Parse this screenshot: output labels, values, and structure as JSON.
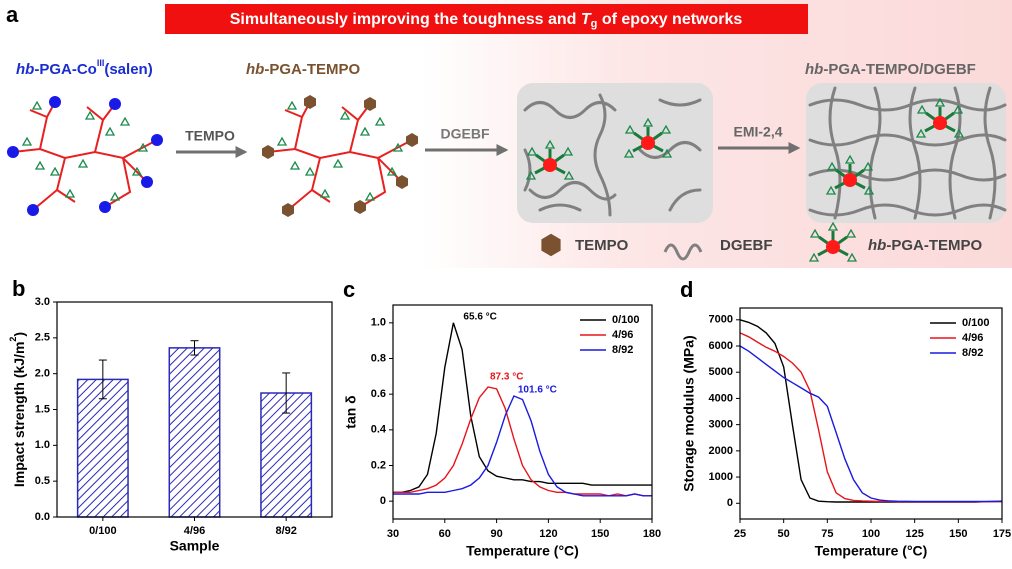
{
  "panel_a": {
    "letter": "a",
    "banner": [
      "Simultaneously improving the toughness and ",
      "T",
      "g",
      " of epoxy networks"
    ],
    "structure_1": [
      "hb",
      "-PGA-Co",
      "III",
      "(salen)"
    ],
    "structure_2": [
      "hb",
      "-PGA-TEMPO"
    ],
    "structure_3": [
      "hb",
      "-PGA-TEMPO/DGEBF"
    ],
    "arrow_1": "TEMPO",
    "arrow_2": "DGEBF",
    "arrow_3": "EMI-2,4",
    "legend": {
      "tempo": "TEMPO",
      "dgebf": "DGEBF",
      "hb_pga_tempo": [
        "hb",
        "-PGA-TEMPO"
      ]
    }
  },
  "chart_data": [
    {
      "type": "bar",
      "panel_label": "b",
      "categories": [
        "0/100",
        "4/96",
        "8/92"
      ],
      "values": [
        1.92,
        2.36,
        1.73
      ],
      "errors": [
        0.27,
        0.1,
        0.28
      ],
      "color": "#2a2ab8",
      "hatch": true,
      "xlabel": "Sample",
      "ylabel": [
        "Impact strength (kJ/m",
        "2",
        ")"
      ],
      "ylim": [
        0,
        3.0
      ],
      "yticks": [
        {
          "value": 0,
          "label": "0.0"
        },
        0.5,
        {
          "value": 1,
          "label": "1.0"
        },
        1.5,
        {
          "value": 2,
          "label": "2.0"
        },
        2.5,
        {
          "value": 3,
          "label": "3.0"
        }
      ]
    },
    {
      "type": "line",
      "panel_label": "c",
      "x": [
        30,
        35,
        40,
        45,
        50,
        55,
        60,
        65,
        70,
        75,
        80,
        85,
        90,
        95,
        100,
        105,
        110,
        115,
        120,
        125,
        130,
        135,
        140,
        145,
        150,
        155,
        160,
        165,
        170,
        175,
        180
      ],
      "series": [
        {
          "name": "0/100",
          "color": "#000000",
          "values": [
            0.05,
            0.05,
            0.06,
            0.08,
            0.15,
            0.38,
            0.75,
            1.0,
            0.85,
            0.48,
            0.25,
            0.17,
            0.14,
            0.13,
            0.12,
            0.12,
            0.11,
            0.11,
            0.1,
            0.1,
            0.1,
            0.1,
            0.1,
            0.09,
            0.09,
            0.09,
            0.09,
            0.09,
            0.09,
            0.09,
            0.09
          ]
        },
        {
          "name": "4/96",
          "color": "#e8141b",
          "values": [
            0.05,
            0.05,
            0.05,
            0.06,
            0.07,
            0.09,
            0.13,
            0.2,
            0.32,
            0.46,
            0.58,
            0.64,
            0.63,
            0.52,
            0.35,
            0.2,
            0.12,
            0.08,
            0.06,
            0.05,
            0.05,
            0.04,
            0.04,
            0.04,
            0.04,
            0.03,
            0.04,
            0.03,
            0.04,
            0.03,
            0.03
          ]
        },
        {
          "name": "8/92",
          "color": "#1a1ae0",
          "values": [
            0.04,
            0.04,
            0.04,
            0.04,
            0.05,
            0.05,
            0.05,
            0.06,
            0.07,
            0.09,
            0.13,
            0.2,
            0.33,
            0.48,
            0.59,
            0.57,
            0.45,
            0.28,
            0.15,
            0.08,
            0.05,
            0.04,
            0.03,
            0.03,
            0.03,
            0.03,
            0.03,
            0.03,
            0.04,
            0.03,
            0.03
          ]
        }
      ],
      "annotations": [
        {
          "text": "65.6 °C",
          "series": 0
        },
        {
          "text": "87.3 °C",
          "series": 1
        },
        {
          "text": "101.6 °C",
          "series": 2
        }
      ],
      "xlabel": "Temperature (°C)",
      "ylabel": "tan δ",
      "xlim": [
        30,
        180
      ],
      "xticks": [
        30,
        60,
        90,
        120,
        150,
        180
      ],
      "ylim": [
        -0.1,
        1.1
      ],
      "yticks": [
        0,
        0.2,
        0.4,
        0.6,
        0.8,
        {
          "value": 1,
          "label": "1.0"
        }
      ],
      "legend": "upper right"
    },
    {
      "type": "line",
      "panel_label": "d",
      "x": [
        25,
        30,
        35,
        40,
        45,
        50,
        55,
        60,
        65,
        70,
        75,
        80,
        85,
        90,
        95,
        100,
        105,
        110,
        115,
        120,
        125,
        130,
        135,
        140,
        145,
        150,
        155,
        160,
        165,
        170,
        175
      ],
      "series": [
        {
          "name": "0/100",
          "color": "#000000",
          "values": [
            7000,
            6900,
            6750,
            6500,
            6100,
            5200,
            3000,
            900,
            200,
            80,
            60,
            50,
            50,
            50,
            50,
            50,
            50,
            50,
            50,
            50,
            50,
            50,
            50,
            50,
            50,
            50,
            50,
            50,
            60,
            70,
            80
          ]
        },
        {
          "name": "4/96",
          "color": "#e8141b",
          "values": [
            6500,
            6350,
            6150,
            5950,
            5800,
            5600,
            5350,
            5000,
            4300,
            2800,
            1200,
            400,
            180,
            110,
            90,
            80,
            70,
            70,
            60,
            60,
            60,
            60,
            60,
            60,
            60,
            60,
            60,
            60,
            60,
            60,
            60
          ]
        },
        {
          "name": "8/92",
          "color": "#1a1ae0",
          "values": [
            6000,
            5800,
            5550,
            5300,
            5050,
            4800,
            4600,
            4400,
            4200,
            4050,
            3700,
            2700,
            1700,
            900,
            400,
            200,
            120,
            90,
            80,
            75,
            70,
            70,
            70,
            70,
            70,
            70,
            70,
            70,
            70,
            70,
            70
          ]
        }
      ],
      "xlabel": "Temperature (°C)",
      "ylabel": "Storage modulus (MPa)",
      "xlim": [
        25,
        175
      ],
      "xticks": [
        25,
        50,
        75,
        100,
        125,
        150,
        175
      ],
      "ylim": [
        -600,
        7450
      ],
      "yticks": [
        0,
        1000,
        2000,
        3000,
        4000,
        5000,
        6000,
        7000
      ],
      "legend": "upper right"
    }
  ]
}
